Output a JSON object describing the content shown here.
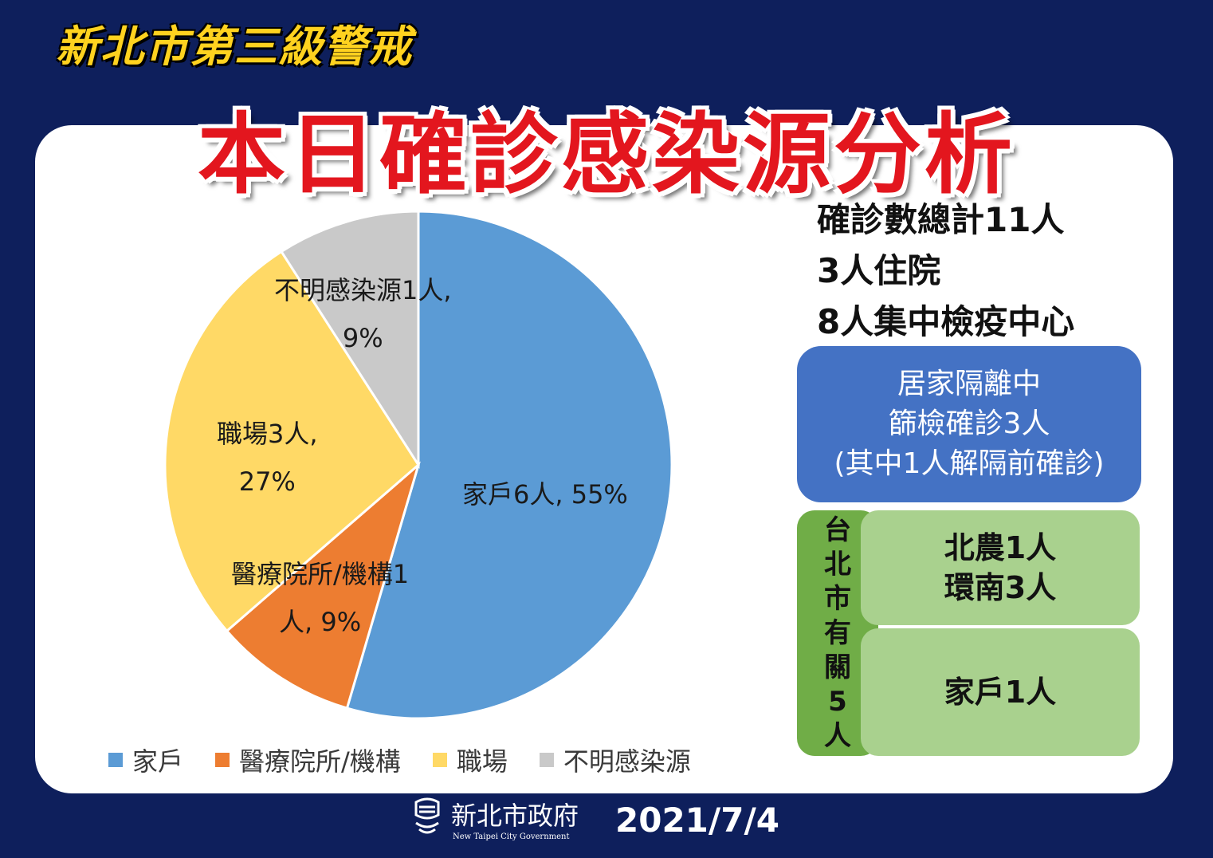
{
  "header": {
    "tag": "新北市第三級警戒",
    "title": "本日確診感染源分析"
  },
  "chart_data": {
    "type": "pie",
    "categories": [
      "家戶",
      "醫療院所/機構",
      "職場",
      "不明感染源"
    ],
    "values": [
      6,
      1,
      3,
      1
    ],
    "percents": [
      55,
      9,
      27,
      9
    ],
    "colors": [
      "#5b9bd5",
      "#ed7d31",
      "#ffd966",
      "#c9c9c9"
    ],
    "data_labels": [
      [
        "家戶6人, 55%"
      ],
      [
        "醫療院所/機構1",
        "人, 9%"
      ],
      [
        "職場3人,",
        "27%"
      ],
      [
        "不明感染源1人,",
        "9%"
      ]
    ],
    "legend_position": "bottom"
  },
  "summary": {
    "lines": [
      "確診數總計11人",
      "3人住院",
      "8人集中檢疫中心"
    ]
  },
  "home_quarantine": {
    "lines": [
      "居家隔離中",
      "篩檢確診3人",
      "(其中1人解隔前確診)"
    ]
  },
  "taipei": {
    "side_label": "台北市有關5人",
    "cell1": [
      "北農1人",
      "環南3人"
    ],
    "cell2": "家戶1人"
  },
  "footer": {
    "org_name": "新北市政府",
    "org_name_en": "New Taipei City Government",
    "date": "2021/7/4"
  }
}
